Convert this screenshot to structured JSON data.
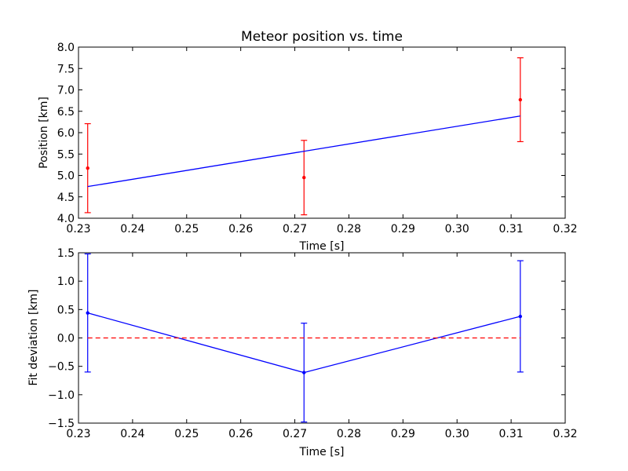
{
  "chart_data": [
    {
      "type": "line",
      "title": "Meteor position vs. time",
      "xlabel": "Time [s]",
      "ylabel": "Position [km]",
      "xlim": [
        0.23,
        0.32
      ],
      "ylim": [
        4.0,
        8.0
      ],
      "xticks": [
        "0.23",
        "0.24",
        "0.25",
        "0.26",
        "0.27",
        "0.28",
        "0.29",
        "0.30",
        "0.31",
        "0.32"
      ],
      "yticks": [
        "4.0",
        "4.5",
        "5.0",
        "5.5",
        "6.0",
        "6.5",
        "7.0",
        "7.5",
        "8.0"
      ],
      "grid": false,
      "series": [
        {
          "kind": "errorbar-points",
          "color": "#ff0000",
          "points": [
            {
              "x": 0.2317,
              "y": 5.17,
              "err": 1.04
            },
            {
              "x": 0.2717,
              "y": 4.95,
              "err": 0.87
            },
            {
              "x": 0.3117,
              "y": 6.77,
              "err": 0.98
            }
          ]
        },
        {
          "kind": "fit-line",
          "color": "#0000ff",
          "x": [
            0.2317,
            0.3117
          ],
          "y": [
            4.74,
            6.39
          ]
        }
      ]
    },
    {
      "type": "line",
      "title": "",
      "xlabel": "Time [s]",
      "ylabel": "Fit deviation [km]",
      "xlim": [
        0.23,
        0.32
      ],
      "ylim": [
        -1.5,
        1.5
      ],
      "xticks": [
        "0.23",
        "0.24",
        "0.25",
        "0.26",
        "0.27",
        "0.28",
        "0.29",
        "0.30",
        "0.31",
        "0.32"
      ],
      "yticks": [
        "−1.5",
        "−1.0",
        "−0.5",
        "0.0",
        "0.5",
        "1.0",
        "1.5"
      ],
      "grid": false,
      "series": [
        {
          "kind": "errorbar-line",
          "color": "#0000ff",
          "points": [
            {
              "x": 0.2317,
              "y": 0.44,
              "err": 1.04
            },
            {
              "x": 0.2717,
              "y": -0.61,
              "err": 0.87
            },
            {
              "x": 0.3117,
              "y": 0.38,
              "err": 0.98
            }
          ]
        },
        {
          "kind": "reference-line",
          "color": "#ff0000",
          "style": "dashed",
          "x": [
            0.2317,
            0.3117
          ],
          "y": [
            0.0,
            0.0
          ]
        }
      ]
    }
  ]
}
